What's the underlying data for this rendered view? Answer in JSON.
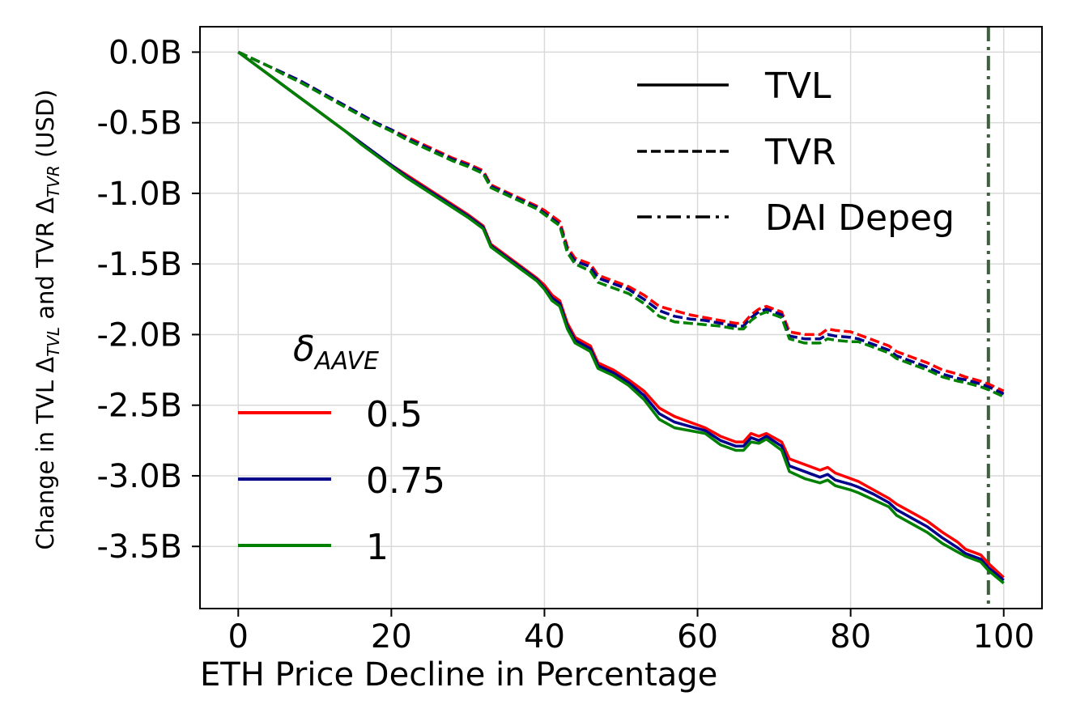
{
  "chart_data": {
    "type": "line",
    "title": "",
    "xlabel": "ETH Price Decline in Percentage",
    "ylabel": "Change in TVL Δ_{TVL} and TVR Δ_{TVR} (USD)",
    "ylabel_parts": {
      "a": "Change in TVL Δ",
      "a_sub": "TVL",
      "b": " and TVR Δ",
      "b_sub": "TVR",
      "c": " (USD)"
    },
    "xlim": [
      -5,
      105
    ],
    "ylim": [
      -3.94,
      0.18
    ],
    "x_ticks": [
      0,
      20,
      40,
      60,
      80,
      100
    ],
    "x_tick_labels": [
      "0",
      "20",
      "40",
      "60",
      "80",
      "100"
    ],
    "y_ticks": [
      0,
      -0.5,
      -1.0,
      -1.5,
      -2.0,
      -2.5,
      -3.0,
      -3.5
    ],
    "y_tick_labels": [
      "0.0B",
      "-0.5B",
      "-1.0B",
      "-1.5B",
      "-2.0B",
      "-2.5B",
      "-3.0B",
      "-3.5B"
    ],
    "grid": true,
    "x": [
      0,
      2,
      4,
      6,
      8,
      10,
      12,
      14,
      16,
      18,
      20,
      22,
      24,
      26,
      28,
      30,
      32,
      33,
      35,
      37,
      39,
      40,
      41,
      42,
      43,
      44,
      46,
      47,
      49,
      51,
      53,
      55,
      57,
      59,
      61,
      63,
      65,
      66,
      67,
      68,
      69,
      71,
      72,
      74,
      76,
      77,
      78,
      80,
      81,
      83,
      85,
      86,
      88,
      90,
      92,
      94,
      95,
      97,
      98,
      100
    ],
    "series": [
      {
        "name": "0.5",
        "metric": "TVL",
        "color": "#ff0000",
        "values": [
          0,
          -0.08,
          -0.16,
          -0.24,
          -0.32,
          -0.4,
          -0.48,
          -0.56,
          -0.64,
          -0.72,
          -0.8,
          -0.87,
          -0.94,
          -1.01,
          -1.08,
          -1.15,
          -1.23,
          -1.36,
          -1.44,
          -1.52,
          -1.6,
          -1.65,
          -1.72,
          -1.76,
          -1.92,
          -2.02,
          -2.08,
          -2.2,
          -2.25,
          -2.32,
          -2.4,
          -2.52,
          -2.58,
          -2.62,
          -2.66,
          -2.72,
          -2.76,
          -2.76,
          -2.7,
          -2.72,
          -2.7,
          -2.76,
          -2.88,
          -2.92,
          -2.96,
          -2.94,
          -2.98,
          -3.02,
          -3.04,
          -3.1,
          -3.16,
          -3.2,
          -3.26,
          -3.32,
          -3.4,
          -3.47,
          -3.52,
          -3.56,
          -3.62,
          -3.72
        ]
      },
      {
        "name": "0.75",
        "metric": "TVL",
        "color": "#00008b",
        "values": [
          0,
          -0.08,
          -0.16,
          -0.24,
          -0.32,
          -0.4,
          -0.48,
          -0.56,
          -0.64,
          -0.72,
          -0.8,
          -0.88,
          -0.95,
          -1.02,
          -1.09,
          -1.16,
          -1.24,
          -1.37,
          -1.45,
          -1.53,
          -1.61,
          -1.67,
          -1.74,
          -1.78,
          -1.94,
          -2.04,
          -2.1,
          -2.22,
          -2.27,
          -2.34,
          -2.43,
          -2.56,
          -2.62,
          -2.65,
          -2.68,
          -2.75,
          -2.79,
          -2.79,
          -2.73,
          -2.75,
          -2.72,
          -2.79,
          -2.93,
          -2.97,
          -3.01,
          -2.99,
          -3.03,
          -3.06,
          -3.08,
          -3.13,
          -3.19,
          -3.24,
          -3.3,
          -3.36,
          -3.44,
          -3.51,
          -3.55,
          -3.59,
          -3.65,
          -3.74
        ]
      },
      {
        "name": "1",
        "metric": "TVL",
        "color": "#008000",
        "values": [
          0,
          -0.08,
          -0.16,
          -0.24,
          -0.32,
          -0.4,
          -0.48,
          -0.56,
          -0.65,
          -0.73,
          -0.81,
          -0.89,
          -0.96,
          -1.03,
          -1.1,
          -1.17,
          -1.25,
          -1.38,
          -1.46,
          -1.54,
          -1.62,
          -1.68,
          -1.76,
          -1.8,
          -1.96,
          -2.06,
          -2.12,
          -2.24,
          -2.29,
          -2.36,
          -2.46,
          -2.6,
          -2.66,
          -2.68,
          -2.7,
          -2.78,
          -2.82,
          -2.82,
          -2.76,
          -2.77,
          -2.74,
          -2.82,
          -2.97,
          -3.02,
          -3.05,
          -3.03,
          -3.07,
          -3.1,
          -3.12,
          -3.17,
          -3.22,
          -3.28,
          -3.34,
          -3.4,
          -3.48,
          -3.54,
          -3.57,
          -3.61,
          -3.67,
          -3.76
        ]
      },
      {
        "name": "0.5",
        "metric": "TVR",
        "color": "#ff0000",
        "values": [
          0,
          -0.05,
          -0.1,
          -0.15,
          -0.2,
          -0.26,
          -0.32,
          -0.38,
          -0.44,
          -0.5,
          -0.55,
          -0.6,
          -0.65,
          -0.7,
          -0.75,
          -0.79,
          -0.84,
          -0.94,
          -0.99,
          -1.04,
          -1.09,
          -1.12,
          -1.16,
          -1.2,
          -1.38,
          -1.46,
          -1.5,
          -1.58,
          -1.62,
          -1.66,
          -1.72,
          -1.8,
          -1.83,
          -1.86,
          -1.88,
          -1.9,
          -1.92,
          -1.92,
          -1.86,
          -1.82,
          -1.8,
          -1.84,
          -1.98,
          -2.0,
          -2.0,
          -1.96,
          -1.97,
          -1.98,
          -2.0,
          -2.04,
          -2.08,
          -2.12,
          -2.16,
          -2.2,
          -2.25,
          -2.28,
          -2.3,
          -2.33,
          -2.35,
          -2.4
        ]
      },
      {
        "name": "0.75",
        "metric": "TVR",
        "color": "#00008b",
        "values": [
          0,
          -0.05,
          -0.1,
          -0.15,
          -0.2,
          -0.26,
          -0.32,
          -0.38,
          -0.44,
          -0.5,
          -0.55,
          -0.61,
          -0.66,
          -0.71,
          -0.76,
          -0.8,
          -0.85,
          -0.95,
          -1.0,
          -1.05,
          -1.1,
          -1.14,
          -1.18,
          -1.22,
          -1.4,
          -1.48,
          -1.52,
          -1.6,
          -1.64,
          -1.68,
          -1.75,
          -1.83,
          -1.87,
          -1.89,
          -1.9,
          -1.92,
          -1.94,
          -1.94,
          -1.88,
          -1.84,
          -1.82,
          -1.86,
          -2.01,
          -2.03,
          -2.03,
          -2.0,
          -2.01,
          -2.02,
          -2.03,
          -2.07,
          -2.11,
          -2.15,
          -2.19,
          -2.23,
          -2.28,
          -2.31,
          -2.32,
          -2.35,
          -2.37,
          -2.42
        ]
      },
      {
        "name": "1",
        "metric": "TVR",
        "color": "#008000",
        "values": [
          0,
          -0.05,
          -0.1,
          -0.16,
          -0.21,
          -0.27,
          -0.33,
          -0.39,
          -0.45,
          -0.51,
          -0.56,
          -0.62,
          -0.67,
          -0.72,
          -0.77,
          -0.81,
          -0.86,
          -0.96,
          -1.01,
          -1.06,
          -1.11,
          -1.15,
          -1.19,
          -1.23,
          -1.42,
          -1.5,
          -1.55,
          -1.63,
          -1.67,
          -1.71,
          -1.78,
          -1.87,
          -1.91,
          -1.92,
          -1.93,
          -1.94,
          -1.96,
          -1.96,
          -1.9,
          -1.86,
          -1.84,
          -1.88,
          -2.03,
          -2.06,
          -2.06,
          -2.03,
          -2.04,
          -2.05,
          -2.05,
          -2.09,
          -2.13,
          -2.17,
          -2.21,
          -2.25,
          -2.3,
          -2.33,
          -2.34,
          -2.37,
          -2.39,
          -2.44
        ]
      }
    ],
    "depeg_line": {
      "x": 98,
      "label": "DAI Depeg",
      "color": "#3f5f3f"
    },
    "legend_styles": {
      "placement": "top-right",
      "entries": [
        {
          "label": "TVL",
          "style": "solid"
        },
        {
          "label": "TVR",
          "style": "dashed"
        },
        {
          "label": "DAI Depeg",
          "style": "dashdot"
        }
      ]
    },
    "legend_delta": {
      "placement": "lower-left",
      "title_symbol": "δ",
      "title_sub": "AAVE",
      "entries": [
        {
          "label": "0.5",
          "color": "#ff0000"
        },
        {
          "label": "0.75",
          "color": "#00008b"
        },
        {
          "label": "1",
          "color": "#008000"
        }
      ]
    }
  }
}
